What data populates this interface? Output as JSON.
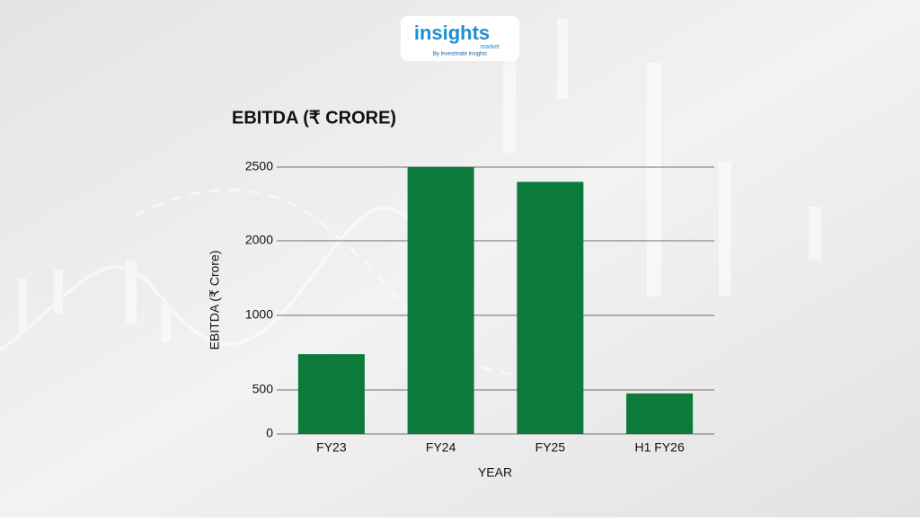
{
  "logo": {
    "brand": "insights",
    "sub": "market",
    "tagline": "By Investmate Insights"
  },
  "chart_data": {
    "type": "bar",
    "title": "EBITDA (₹ CRORE)",
    "ylabel": "EBITDA (₹ Crore)",
    "xlabel": "YEAR",
    "categories": [
      "FY23",
      "FY24",
      "FY25",
      "H1 FY26"
    ],
    "values": [
      740,
      2500,
      2400,
      460
    ],
    "color": "#0b7a3b",
    "ylim": [
      0,
      2500
    ],
    "yticks": [
      0,
      500,
      1000,
      2000,
      2500
    ],
    "grid": true
  }
}
